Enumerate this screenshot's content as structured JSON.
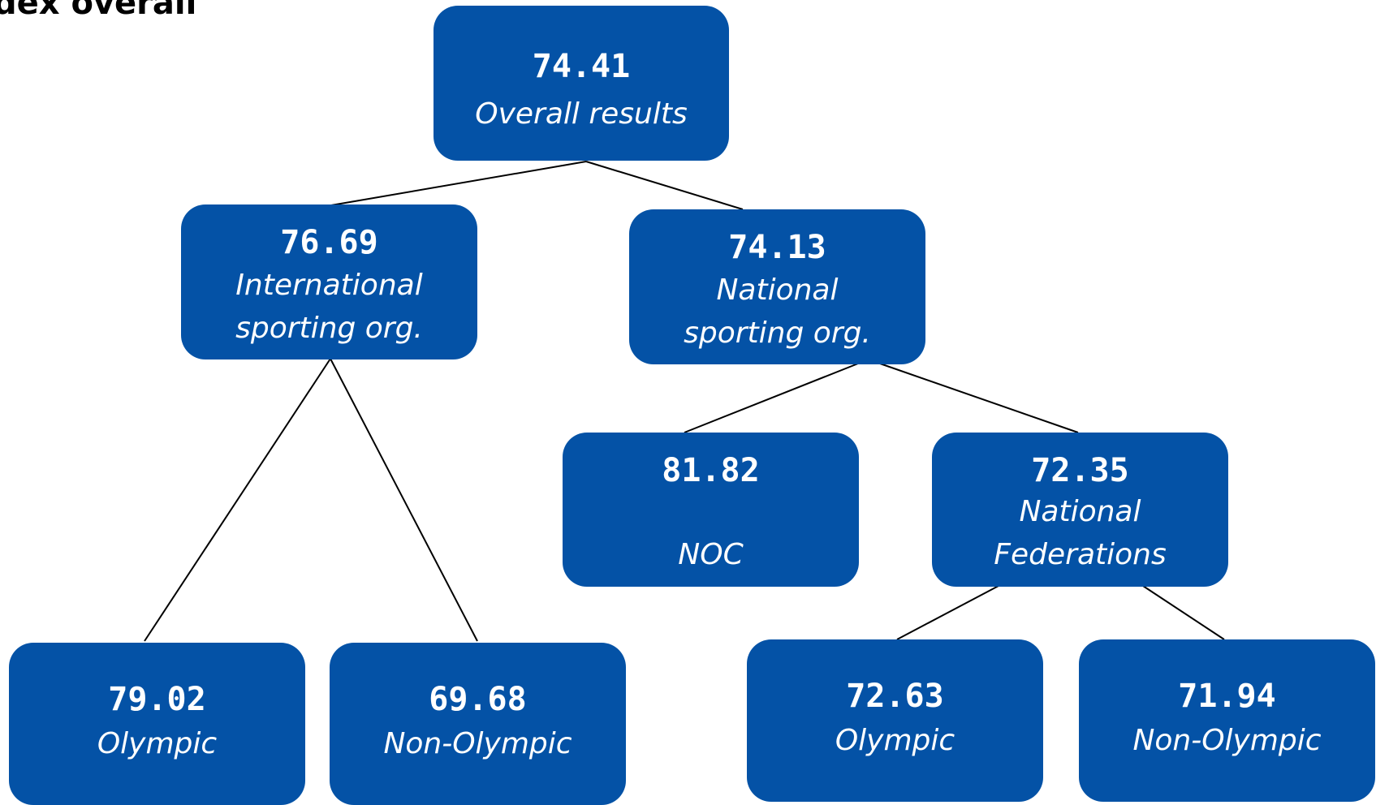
{
  "title": "dex overall",
  "colors": {
    "node_fill": "#0452a6",
    "node_text": "#ffffff",
    "link": "#000000"
  },
  "nodes": {
    "overall": {
      "value": "74.41",
      "label": "Overall results"
    },
    "international": {
      "value": "76.69",
      "label": "International\nsporting org."
    },
    "national": {
      "value": "74.13",
      "label": "National\nsporting org."
    },
    "intl_olympic": {
      "value": "79.02",
      "label": "Olympic"
    },
    "intl_non_olympic": {
      "value": "69.68",
      "label": "Non-Olympic"
    },
    "noc": {
      "value": "81.82",
      "label": "NOC"
    },
    "national_federations": {
      "value": "72.35",
      "label": "National\nFederations"
    },
    "nf_olympic": {
      "value": "72.63",
      "label": "Olympic"
    },
    "nf_non_olympic": {
      "value": "71.94",
      "label": "Non-Olympic"
    }
  }
}
